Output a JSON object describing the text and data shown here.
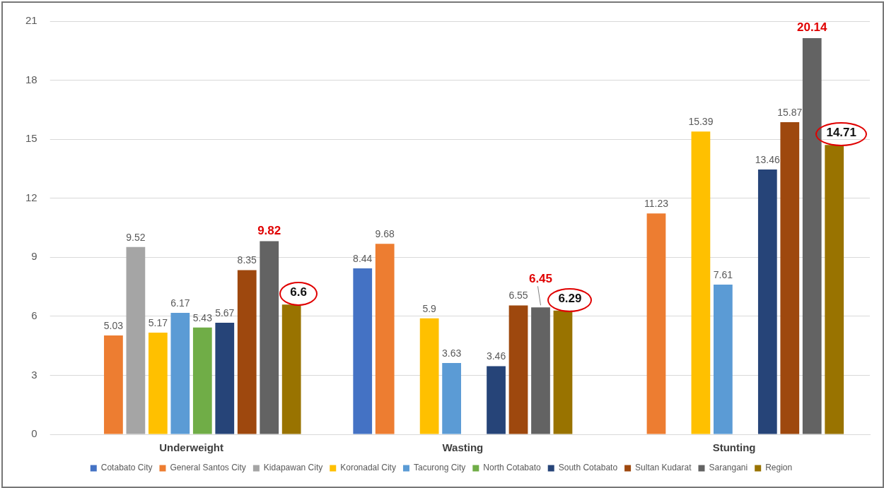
{
  "chart_data": {
    "type": "bar",
    "categories": [
      "Underweight",
      "Wasting",
      "Stunting"
    ],
    "series": [
      {
        "name": "Cotabato City",
        "color": "#4472c4",
        "values": [
          null,
          8.44,
          null
        ]
      },
      {
        "name": "General Santos City",
        "color": "#ed7d31",
        "values": [
          5.03,
          9.68,
          11.23
        ]
      },
      {
        "name": "Kidapawan City",
        "color": "#a5a5a5",
        "values": [
          9.52,
          null,
          null
        ]
      },
      {
        "name": "Koronadal City",
        "color": "#ffc000",
        "values": [
          5.17,
          5.9,
          15.39
        ]
      },
      {
        "name": "Tacurong City",
        "color": "#5b9bd5",
        "values": [
          6.17,
          3.63,
          7.61
        ]
      },
      {
        "name": "North Cotabato",
        "color": "#70ad47",
        "values": [
          5.43,
          null,
          null
        ]
      },
      {
        "name": "South Cotabato",
        "color": "#264478",
        "values": [
          5.67,
          3.46,
          13.46
        ]
      },
      {
        "name": "Sultan Kudarat",
        "color": "#9e480e",
        "values": [
          8.35,
          6.55,
          15.87
        ]
      },
      {
        "name": "Sarangani",
        "color": "#636363",
        "values": [
          9.82,
          6.45,
          20.14
        ]
      },
      {
        "name": "Region",
        "color": "#997300",
        "values": [
          6.6,
          6.29,
          14.71
        ]
      }
    ],
    "ylim": [
      0,
      21
    ],
    "yticks": [
      0,
      3,
      6,
      9,
      12,
      15,
      18,
      21
    ],
    "grid": "y",
    "legend": "bottom",
    "data_labels": true
  }
}
